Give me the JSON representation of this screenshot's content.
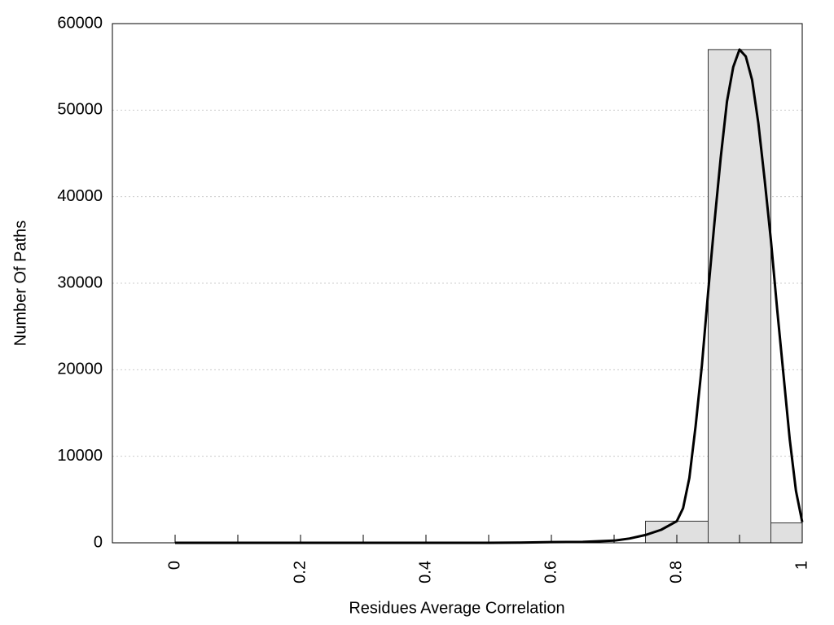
{
  "chart_data": {
    "type": "histogram",
    "x_label": "Residues Average Correlation",
    "y_label": "Number Of Paths",
    "bins": [
      0.75,
      0.85,
      0.95,
      1.0
    ],
    "counts": [
      2500,
      57000,
      2300
    ],
    "color": "#e0e0e0",
    "edge_color": "#333333",
    "curve": {
      "color": "#000000",
      "x": [
        0.0,
        0.5,
        0.55,
        0.6,
        0.65,
        0.7,
        0.725,
        0.75,
        0.775,
        0.8,
        0.81,
        0.82,
        0.83,
        0.84,
        0.85,
        0.86,
        0.87,
        0.88,
        0.89,
        0.9,
        0.91,
        0.92,
        0.93,
        0.94,
        0.95,
        0.96,
        0.97,
        0.98,
        0.99,
        1.0
      ],
      "values": [
        0,
        0,
        30,
        80,
        100,
        250,
        500,
        900,
        1500,
        2500,
        4000,
        7500,
        13500,
        20500,
        29000,
        37000,
        44500,
        51000,
        55000,
        57000,
        56200,
        53500,
        48500,
        42000,
        35000,
        27000,
        19500,
        12000,
        6000,
        2400
      ]
    },
    "xlim": [
      -0.1,
      1.0
    ],
    "ylim": [
      0,
      60000
    ],
    "xticks": [
      0,
      0.2,
      0.4,
      0.6,
      0.8,
      1
    ],
    "xminorticks": [
      0.1,
      0.3,
      0.5,
      0.7,
      0.9
    ],
    "yticks": [
      0,
      10000,
      20000,
      30000,
      40000,
      50000,
      60000
    ],
    "grid": true
  }
}
